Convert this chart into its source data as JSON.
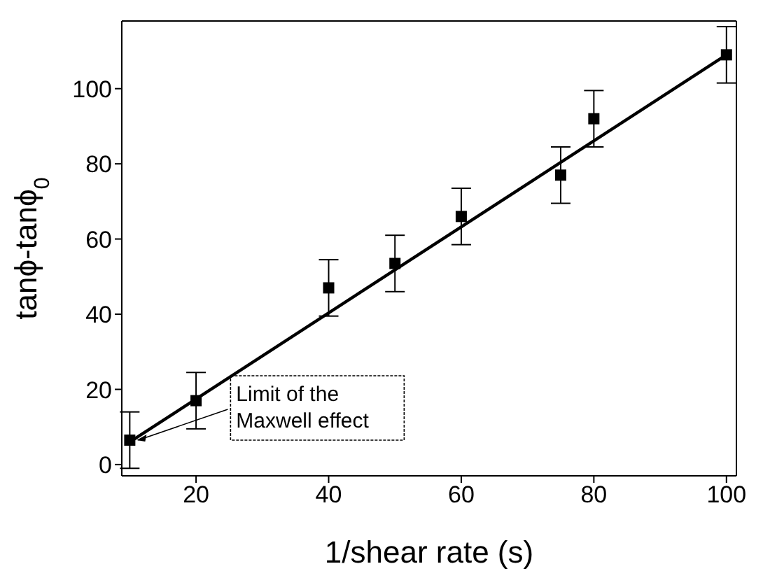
{
  "chart_data": {
    "type": "scatter",
    "xlabel": "1/shear rate (s)",
    "ylabel": "tanϕ-tanϕ$_{0}$",
    "x": [
      10,
      20,
      40,
      50,
      60,
      75,
      80,
      100
    ],
    "series": [
      {
        "color": "#000000",
        "marker": "square",
        "values": [
          6.5,
          17,
          47,
          53.5,
          66,
          77,
          92,
          109
        ],
        "errors": [
          7.5,
          7.5,
          7.5,
          7.5,
          7.5,
          7.5,
          7.5,
          7.5
        ]
      },
      {
        "type": "line",
        "color": "#000000",
        "x": [
          10,
          100
        ],
        "values": [
          6,
          109
        ],
        "marker": "none",
        "line_style": "solid"
      }
    ],
    "xlim": [
      8.8,
      101.5
    ],
    "ylim": [
      -3,
      118
    ],
    "xticks": [
      20,
      40,
      60,
      80,
      100
    ],
    "yticks": [
      0,
      20,
      40,
      60,
      80,
      100
    ],
    "annotations": [
      {
        "text": "Limit of the Maxwell effect",
        "x": 10,
        "y": 6.5
      }
    ]
  }
}
